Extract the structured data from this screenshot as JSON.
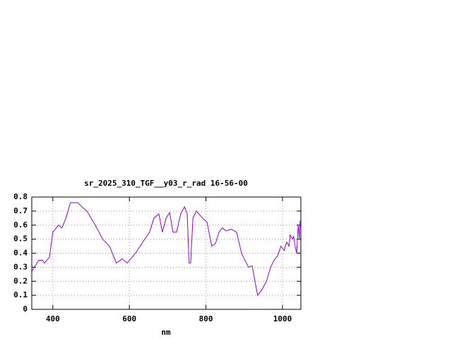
{
  "chart_data": {
    "type": "line",
    "title": "sr_2025_310_TGF__y03_r_rad 16-56-00",
    "x_label": "nm",
    "x": [
      345,
      363,
      373,
      378,
      391,
      400,
      415,
      424,
      434,
      446,
      465,
      480,
      489,
      511,
      530,
      548,
      566,
      581,
      594,
      616,
      640,
      653,
      664,
      677,
      686,
      696,
      705,
      714,
      723,
      734,
      744,
      751,
      756,
      760,
      766,
      775,
      791,
      803,
      815,
      825,
      834,
      843,
      852,
      867,
      880,
      893,
      902,
      911,
      921,
      928,
      935,
      944,
      958,
      969,
      978,
      987,
      996,
      1004,
      1011,
      1017,
      1020,
      1026,
      1029,
      1033,
      1037,
      1041,
      1044,
      1046
    ],
    "series": [
      {
        "name": "sr_2025_310_TGF__y03_r_rad 16-56-00",
        "color": "#9400d3",
        "values": [
          0.27,
          0.35,
          0.35,
          0.33,
          0.37,
          0.55,
          0.6,
          0.58,
          0.65,
          0.76,
          0.76,
          0.72,
          0.7,
          0.6,
          0.5,
          0.45,
          0.33,
          0.36,
          0.33,
          0.4,
          0.5,
          0.55,
          0.65,
          0.68,
          0.55,
          0.65,
          0.69,
          0.55,
          0.55,
          0.68,
          0.73,
          0.68,
          0.33,
          0.33,
          0.65,
          0.7,
          0.65,
          0.62,
          0.45,
          0.47,
          0.55,
          0.58,
          0.56,
          0.57,
          0.55,
          0.4,
          0.35,
          0.3,
          0.31,
          0.2,
          0.1,
          0.13,
          0.2,
          0.3,
          0.35,
          0.38,
          0.45,
          0.42,
          0.48,
          0.45,
          0.53,
          0.5,
          0.52,
          0.45,
          0.4,
          0.6,
          0.5,
          0.63
        ]
      }
    ],
    "xlim": [
      345,
      1048
    ],
    "xticks": [
      400,
      600,
      800,
      1000
    ],
    "ylim": [
      0,
      0.8
    ],
    "yticks": [
      0,
      0.1,
      0.2,
      0.3,
      0.4,
      0.5,
      0.6,
      0.7,
      0.8
    ],
    "grid": true
  }
}
